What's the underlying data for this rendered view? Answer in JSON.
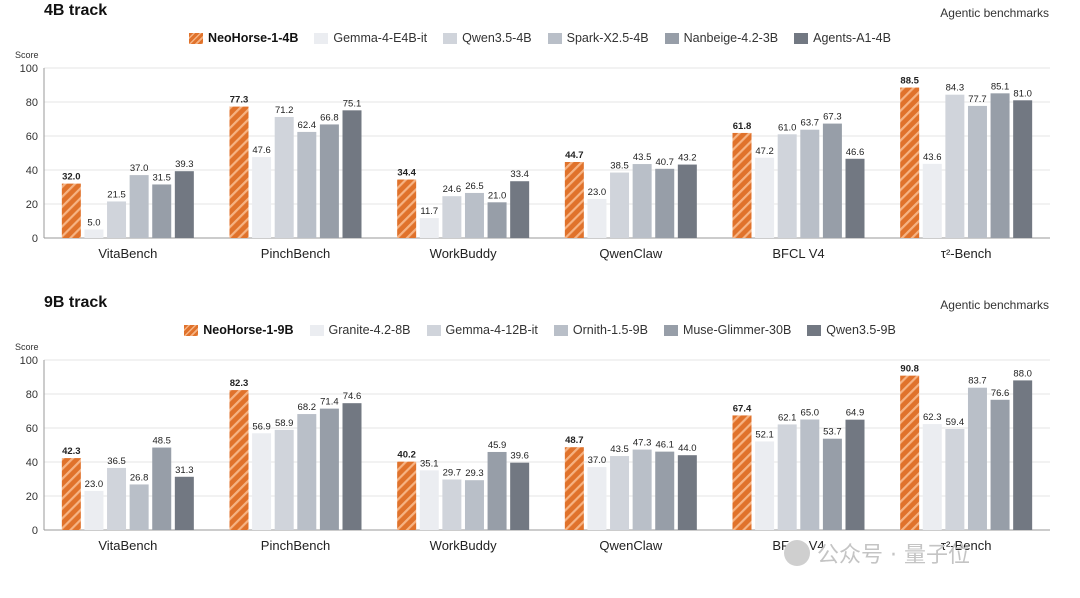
{
  "colors": {
    "accent_orange": "#E0722B",
    "accent_stripe": "#F6B383",
    "grays": [
      "#EBEDF1",
      "#D0D4DB",
      "#B9BFC8",
      "#979EA8",
      "#727882"
    ],
    "grid": "#e6e6e6",
    "axis": "#999999"
  },
  "watermark": {
    "text": "公众号 · 量子位",
    "icon": "wechat-logo-icon"
  },
  "chart_data": [
    {
      "type": "bar",
      "title": "4B track",
      "subtitle": "Agentic benchmarks",
      "ylabel": "Score",
      "ylim": [
        0,
        100
      ],
      "yticks": [
        0,
        20,
        40,
        60,
        80,
        100
      ],
      "grid": true,
      "legend": "top-center",
      "categories": [
        "VitaBench",
        "PinchBench",
        "WorkBuddy",
        "QwenClaw",
        "BFCL V4",
        "τ²-Bench"
      ],
      "series": [
        {
          "name": "NeoHorse-1-4B",
          "values": [
            32.0,
            77.3,
            34.4,
            44.7,
            61.8,
            88.5
          ],
          "labels": [
            "32.0",
            "77.3",
            "34.4",
            "44.7",
            "61.8",
            "88.5"
          ],
          "highlight": true
        },
        {
          "name": "Gemma-4-E4B-it",
          "values": [
            5.0,
            47.6,
            11.7,
            23.0,
            47.2,
            43.6
          ],
          "labels": [
            "5.0",
            "47.6",
            "11.7",
            "23.0",
            "47.2",
            "43.6"
          ]
        },
        {
          "name": "Qwen3.5-4B",
          "values": [
            21.5,
            71.2,
            24.6,
            38.5,
            61.0,
            84.3
          ],
          "labels": [
            "21.5",
            "71.2",
            "24.6",
            "38.5",
            "61.0",
            "84.3"
          ]
        },
        {
          "name": "Spark-X2.5-4B",
          "values": [
            37.0,
            62.4,
            26.5,
            43.5,
            63.7,
            77.7
          ],
          "labels": [
            "37.0",
            "62.4",
            "26.5",
            "43.5",
            "63.7",
            "77.7"
          ]
        },
        {
          "name": "Nanbeige-4.2-3B",
          "values": [
            31.5,
            66.8,
            21.0,
            40.7,
            67.3,
            85.1
          ],
          "labels": [
            "31.5",
            "66.8",
            "21.0",
            "40.7",
            "67.3",
            "85.1"
          ]
        },
        {
          "name": "Agents-A1-4B",
          "values": [
            39.3,
            75.1,
            33.4,
            43.2,
            46.6,
            81.0
          ],
          "labels": [
            "39.3",
            "75.1",
            "33.4",
            "43.2",
            "46.6",
            "81.0"
          ]
        }
      ]
    },
    {
      "type": "bar",
      "title": "9B track",
      "subtitle": "Agentic benchmarks",
      "ylabel": "Score",
      "ylim": [
        0,
        100
      ],
      "yticks": [
        0,
        20,
        40,
        60,
        80,
        100
      ],
      "grid": true,
      "legend": "top-center",
      "categories": [
        "VitaBench",
        "PinchBench",
        "WorkBuddy",
        "QwenClaw",
        "BFCL V4",
        "τ²-Bench"
      ],
      "series": [
        {
          "name": "NeoHorse-1-9B",
          "values": [
            42.3,
            82.3,
            40.2,
            48.7,
            67.4,
            90.8
          ],
          "labels": [
            "42.3",
            "82.3",
            "40.2",
            "48.7",
            "67.4",
            "90.8"
          ],
          "highlight": true
        },
        {
          "name": "Granite-4.2-8B",
          "values": [
            23.0,
            56.9,
            35.1,
            37.0,
            52.1,
            62.3
          ],
          "labels": [
            "23.0",
            "56.9",
            "35.1",
            "37.0",
            "52.1",
            "62.3"
          ]
        },
        {
          "name": "Gemma-4-12B-it",
          "values": [
            36.5,
            58.9,
            29.7,
            43.5,
            62.1,
            59.4
          ],
          "labels": [
            "36.5",
            "58.9",
            "29.7",
            "43.5",
            "62.1",
            "59.4"
          ]
        },
        {
          "name": "Ornith-1.5-9B",
          "values": [
            26.8,
            68.2,
            29.3,
            47.3,
            65.0,
            83.7
          ],
          "labels": [
            "26.8",
            "68.2",
            "29.3",
            "47.3",
            "65.0",
            "83.7"
          ]
        },
        {
          "name": "Muse-Glimmer-30B",
          "values": [
            48.5,
            71.4,
            45.9,
            46.1,
            53.7,
            76.6
          ],
          "labels": [
            "48.5",
            "71.4",
            "45.9",
            "46.1",
            "53.7",
            "76.6"
          ]
        },
        {
          "name": "Qwen3.5-9B",
          "values": [
            31.3,
            74.6,
            39.6,
            44.0,
            64.9,
            88.0
          ],
          "labels": [
            "31.3",
            "74.6",
            "39.6",
            "44.0",
            "64.9",
            "88.0"
          ]
        }
      ]
    }
  ]
}
